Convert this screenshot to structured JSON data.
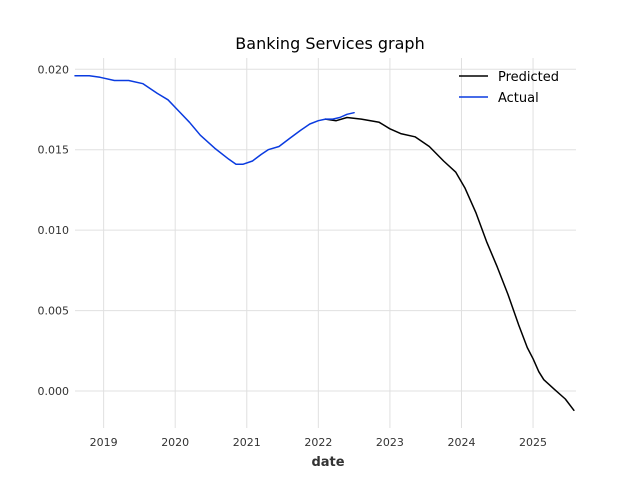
{
  "chart_data": {
    "type": "line",
    "title": "Banking Services graph",
    "xlabel": "date",
    "ylabel": "",
    "xlim": [
      2018.6,
      2025.6
    ],
    "ylim": [
      -0.0023,
      0.0207
    ],
    "x_ticks": [
      2019,
      2020,
      2021,
      2022,
      2023,
      2024,
      2025
    ],
    "x_tick_labels": [
      "2019",
      "2020",
      "2021",
      "2022",
      "2023",
      "2024",
      "2025"
    ],
    "y_ticks": [
      0.0,
      0.005,
      0.01,
      0.015,
      0.02
    ],
    "y_tick_labels": [
      "0.000",
      "0.005",
      "0.010",
      "0.015",
      "0.020"
    ],
    "grid": true,
    "legend_position": "top-right",
    "series": [
      {
        "name": "Predicted",
        "color": "#000000",
        "x": [
          2022.1,
          2022.25,
          2022.4,
          2022.6,
          2022.85,
          2023.0,
          2023.15,
          2023.35,
          2023.55,
          2023.75,
          2023.92,
          2024.05,
          2024.2,
          2024.35,
          2024.5,
          2024.65,
          2024.8,
          2024.92,
          2025.0,
          2025.08,
          2025.15,
          2025.3,
          2025.45,
          2025.57
        ],
        "y": [
          0.0169,
          0.0168,
          0.017,
          0.0169,
          0.0167,
          0.0163,
          0.016,
          0.0158,
          0.0152,
          0.0143,
          0.0136,
          0.0126,
          0.0111,
          0.0093,
          0.0077,
          0.006,
          0.0041,
          0.0027,
          0.002,
          0.0012,
          0.0007,
          0.0001,
          -0.0005,
          -0.0012
        ]
      },
      {
        "name": "Actual",
        "color": "#0a3be0",
        "x": [
          2018.6,
          2018.8,
          2018.95,
          2019.15,
          2019.35,
          2019.55,
          2019.75,
          2019.9,
          2020.05,
          2020.2,
          2020.35,
          2020.55,
          2020.75,
          2020.85,
          2020.95,
          2021.08,
          2021.2,
          2021.3,
          2021.45,
          2021.6,
          2021.75,
          2021.88,
          2022.0,
          2022.1,
          2022.2,
          2022.3,
          2022.4,
          2022.5
        ],
        "y": [
          0.0196,
          0.0196,
          0.0195,
          0.0193,
          0.0193,
          0.0191,
          0.0185,
          0.0181,
          0.0174,
          0.0167,
          0.0159,
          0.0151,
          0.0144,
          0.0141,
          0.0141,
          0.0143,
          0.0147,
          0.015,
          0.0152,
          0.0157,
          0.0162,
          0.0166,
          0.0168,
          0.0169,
          0.0169,
          0.017,
          0.0172,
          0.0173
        ]
      }
    ]
  }
}
